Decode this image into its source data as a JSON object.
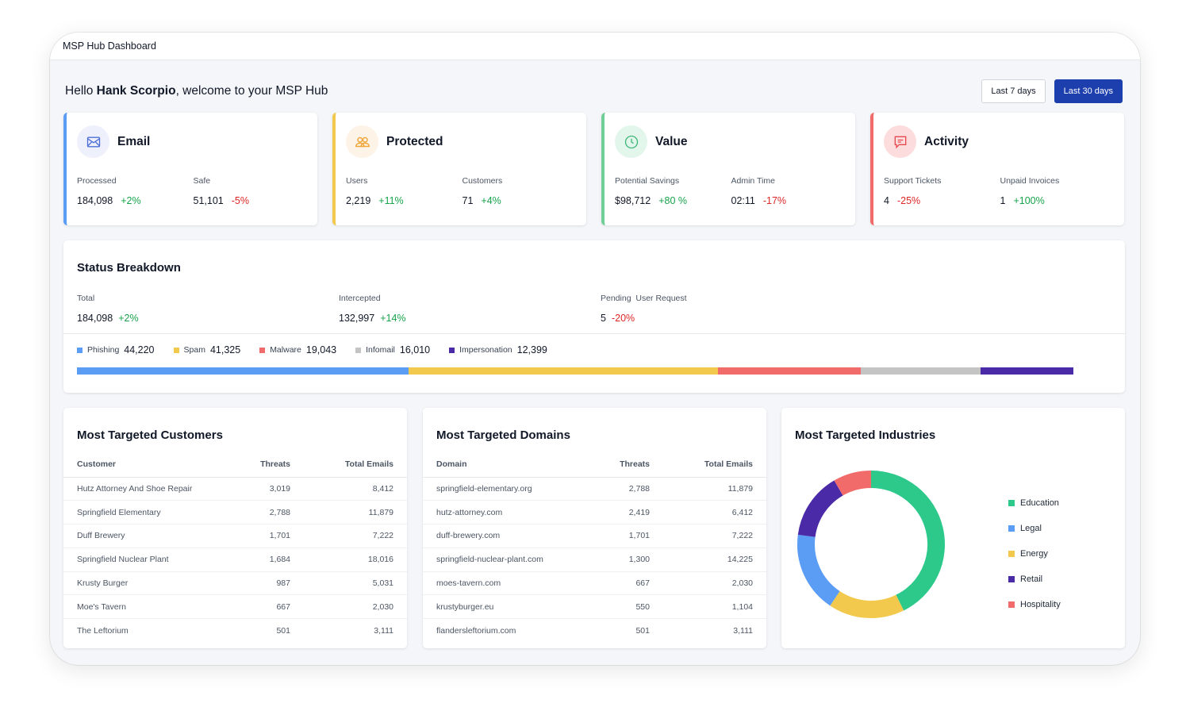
{
  "window": {
    "title": "MSP Hub Dashboard"
  },
  "greeting": {
    "prefix": "Hello ",
    "name": "Hank Scorpio",
    "suffix": ", welcome to your MSP Hub"
  },
  "date_range": {
    "option_7": "Last 7 days",
    "option_30": "Last 30 days",
    "selected": "Last 30 days"
  },
  "stats": [
    {
      "title": "Email",
      "icon": "mail-icon",
      "accent": "#5b9cf4",
      "icon_bg": "#eef0fb",
      "icon_color": "#4f6fd8",
      "metrics": [
        {
          "label": "Processed",
          "value": "184,098",
          "change": "+2%",
          "trend": "pos"
        },
        {
          "label": "Safe",
          "value": "51,101",
          "change": "-5%",
          "trend": "neg"
        }
      ]
    },
    {
      "title": "Protected",
      "icon": "users-icon",
      "accent": "#f2c94c",
      "icon_bg": "#fdf3e6",
      "icon_color": "#f0a63a",
      "metrics": [
        {
          "label": "Users",
          "value": "2,219",
          "change": "+11%",
          "trend": "pos"
        },
        {
          "label": "Customers",
          "value": "71",
          "change": "+4%",
          "trend": "pos"
        }
      ]
    },
    {
      "title": "Value",
      "icon": "clock-icon",
      "accent": "#6fcf97",
      "icon_bg": "#e3f6ec",
      "icon_color": "#3fb67a",
      "metrics": [
        {
          "label": "Potential Savings",
          "value": "$98,712",
          "change": "+80 %",
          "trend": "pos"
        },
        {
          "label": "Admin Time",
          "value": "02:11",
          "change": "-17%",
          "trend": "neg"
        }
      ]
    },
    {
      "title": "Activity",
      "icon": "chat-icon",
      "accent": "#f26b6b",
      "icon_bg": "#fcdcdc",
      "icon_color": "#e5484d",
      "metrics": [
        {
          "label": "Support Tickets",
          "value": "4",
          "change": "-25%",
          "trend": "neg"
        },
        {
          "label": "Unpaid Invoices",
          "value": "1",
          "change": "+100%",
          "trend": "pos"
        }
      ]
    }
  ],
  "status": {
    "title": "Status Breakdown",
    "columns": [
      {
        "label": "Total",
        "value": "184,098",
        "change": "+2%",
        "trend": "pos"
      },
      {
        "label": "Intercepted",
        "value": "132,997",
        "change": "+14%",
        "trend": "pos"
      },
      {
        "label": "Pending  User Request",
        "value": "5",
        "change": "-20%",
        "trend": "neg"
      }
    ],
    "breakdown": [
      {
        "name": "Phishing",
        "value": "44,220",
        "count": 44220,
        "color": "#5b9cf4"
      },
      {
        "name": "Spam",
        "value": "41,325",
        "count": 41325,
        "color": "#f2c94c"
      },
      {
        "name": "Malware",
        "value": "19,043",
        "count": 19043,
        "color": "#f26b6b"
      },
      {
        "name": "Infomail",
        "value": "16,010",
        "count": 16010,
        "color": "#c4c4c4"
      },
      {
        "name": "Impersonation",
        "value": "12,399",
        "count": 12399,
        "color": "#4b2aa8"
      }
    ]
  },
  "customers": {
    "title": "Most Targeted Customers",
    "headers": [
      "Customer",
      "Threats",
      "Total Emails"
    ],
    "rows": [
      [
        "Hutz Attorney And Shoe Repair",
        "3,019",
        "8,412"
      ],
      [
        "Springfield Elementary",
        "2,788",
        "11,879"
      ],
      [
        "Duff Brewery",
        "1,701",
        "7,222"
      ],
      [
        "Springfield Nuclear Plant",
        "1,684",
        "18,016"
      ],
      [
        "Krusty Burger",
        "987",
        "5,031"
      ],
      [
        "Moe's Tavern",
        "667",
        "2,030"
      ],
      [
        "The Leftorium",
        "501",
        "3,111"
      ]
    ]
  },
  "domains": {
    "title": "Most Targeted Domains",
    "headers": [
      "Domain",
      "Threats",
      "Total Emails"
    ],
    "rows": [
      [
        "springfield-elementary.org",
        "2,788",
        "11,879"
      ],
      [
        "hutz-attorney.com",
        "2,419",
        "6,412"
      ],
      [
        "duff-brewery.com",
        "1,701",
        "7,222"
      ],
      [
        "springfield-nuclear-plant.com",
        "1,300",
        "14,225"
      ],
      [
        "moes-tavern.com",
        "667",
        "2,030"
      ],
      [
        "krustyburger.eu",
        "550",
        "1,104"
      ],
      [
        "flandersleftorium.com",
        "501",
        "3,111"
      ]
    ]
  },
  "industries": {
    "title": "Most Targeted Industries",
    "chart_data": {
      "type": "pie",
      "style": "donut",
      "categories": [
        "Education",
        "Legal",
        "Energy",
        "Retail",
        "Hospitality"
      ],
      "values": [
        41,
        17,
        16,
        14,
        8
      ],
      "colors": [
        "#2cc98b",
        "#5b9cf4",
        "#f2c94c",
        "#4b2aa8",
        "#f26b6b"
      ],
      "order_clockwise_from_top": [
        "Education",
        "Energy",
        "Legal",
        "Retail",
        "Hospitality"
      ],
      "legend": "right"
    }
  }
}
